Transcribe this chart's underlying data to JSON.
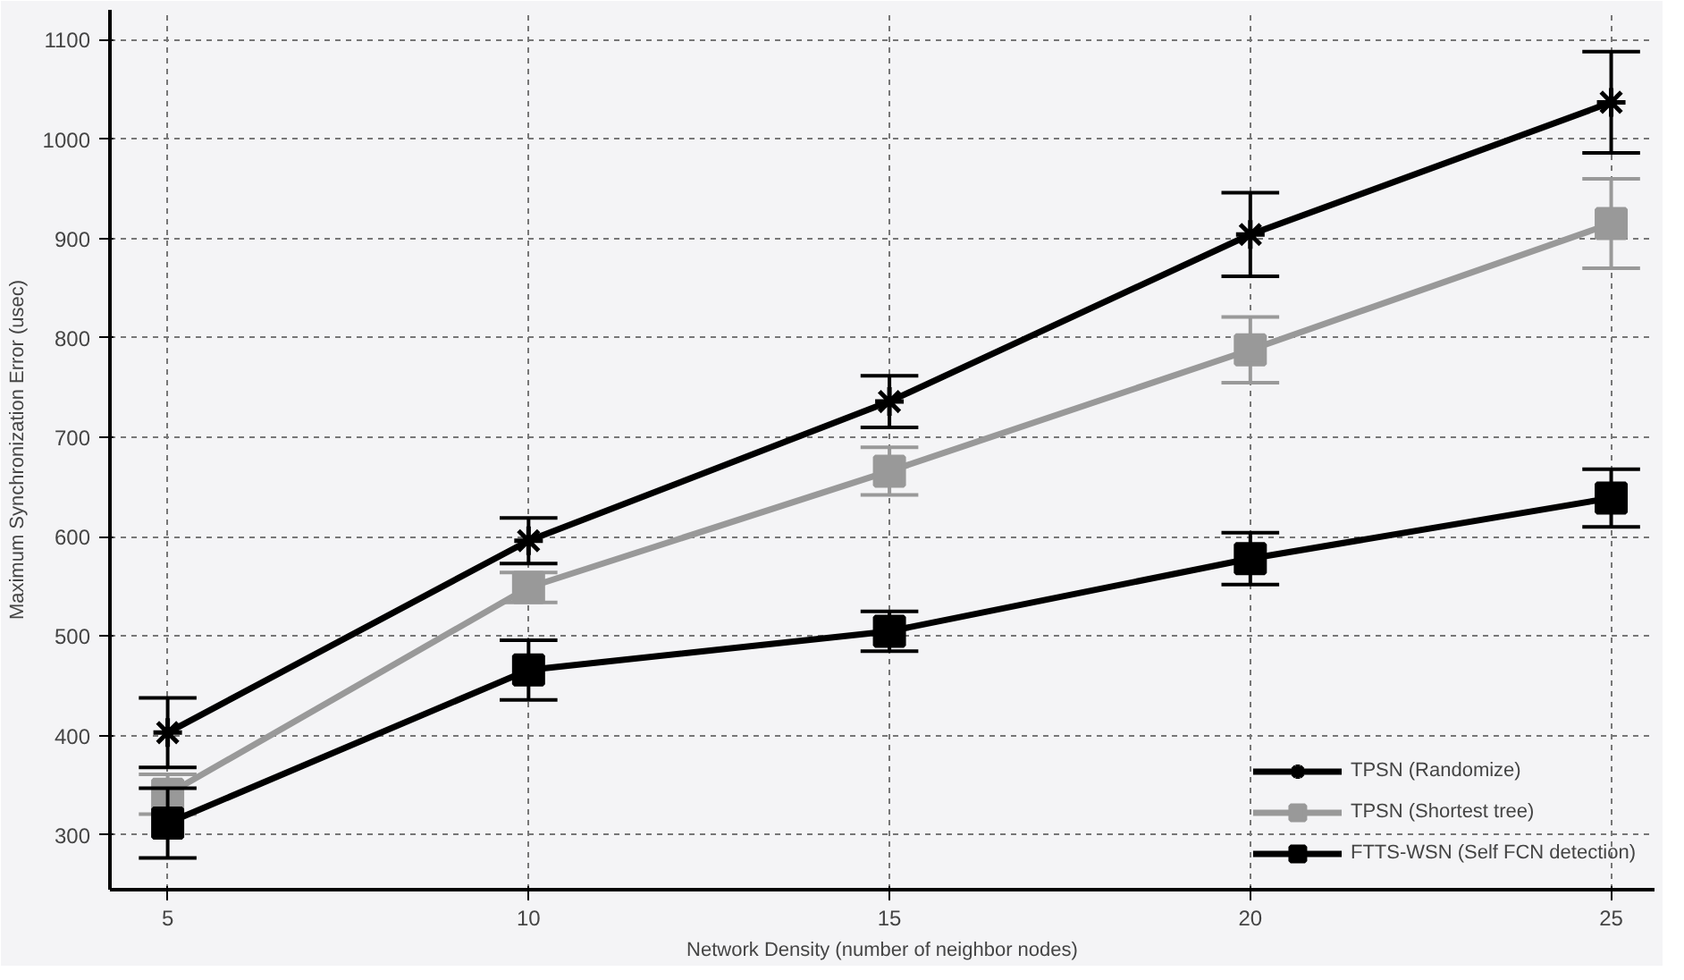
{
  "chart_data": {
    "type": "line",
    "xlabel": "Network Density (number of neighbor nodes)",
    "ylabel": "Maximum Synchronization Error (usec)",
    "x": [
      5,
      10,
      15,
      20,
      25
    ],
    "series": [
      {
        "name": "TPSN (Randomize)",
        "color": "#000000",
        "marker": "cross",
        "values": [
          403,
          596,
          736,
          904,
          1037
        ],
        "errors": [
          35,
          23,
          26,
          42,
          51
        ]
      },
      {
        "name": "TPSN (Shortest tree)",
        "color": "#999999",
        "marker": "square",
        "values": [
          341,
          549,
          666,
          788,
          915
        ],
        "errors": [
          20,
          15,
          24,
          33,
          45
        ]
      },
      {
        "name": "FTTS-WSN (Self FCN detection)",
        "color": "#000000",
        "marker": "square",
        "values": [
          312,
          466,
          505,
          578,
          639
        ],
        "errors": [
          35,
          30,
          20,
          26,
          29
        ]
      }
    ],
    "xlim": [
      4.2,
      25.6
    ],
    "ylim": [
      245,
      1130
    ],
    "xticks": [
      5,
      10,
      15,
      20,
      25
    ],
    "yticks": [
      300,
      400,
      500,
      600,
      700,
      800,
      900,
      1000,
      1100
    ],
    "grid": true,
    "legend": "bottom right",
    "line_style": "solid"
  }
}
